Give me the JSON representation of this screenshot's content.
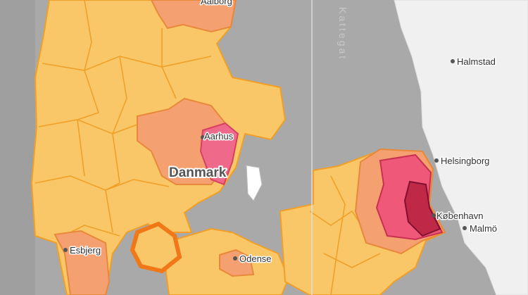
{
  "labels": [
    "Aalborg",
    "Kattegat",
    "Halmstad",
    "Aarhus",
    "Danmark",
    "Helsingborg",
    "København",
    "Malmö",
    "Esbjerg",
    "Odense"
  ]
}
